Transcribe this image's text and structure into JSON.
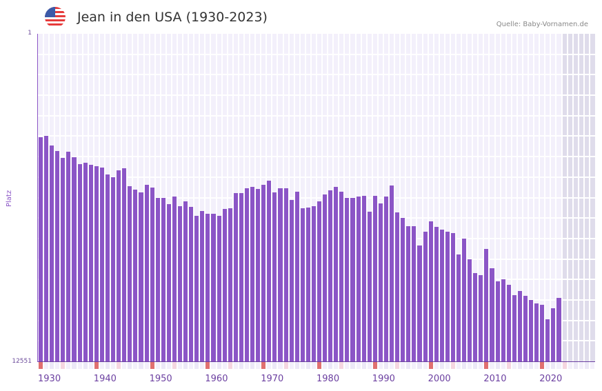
{
  "header": {
    "title": "Jean in den USA (1930-2023)",
    "source": "Quelle: Baby-Vornamen.de",
    "flag_icon": "us-flag-icon"
  },
  "axes": {
    "y_top_label": "1",
    "y_bottom_label": "12551",
    "y_title": "Platz",
    "x_ticks": [
      "1930",
      "1940",
      "1950",
      "1960",
      "1970",
      "1980",
      "1990",
      "2000",
      "2010",
      "2020"
    ]
  },
  "colors": {
    "bar": "#8b55c6",
    "decade_marker": "#e07070",
    "half_decade_marker": "#f5d6e0",
    "background": "#f3f0fb"
  },
  "chart_data": {
    "type": "bar",
    "title": "Jean in den USA (1930-2023)",
    "xlabel": "",
    "ylabel": "Platz",
    "ylim": [
      12551,
      1
    ],
    "y_inverted": true,
    "note": "Bars represent popularity rank (lower rank = taller bar); x range extends to 2029 with future years shaded",
    "x_range": [
      1930,
      2029
    ],
    "categories": [
      1930,
      1931,
      1932,
      1933,
      1934,
      1935,
      1936,
      1937,
      1938,
      1939,
      1940,
      1941,
      1942,
      1943,
      1944,
      1945,
      1946,
      1947,
      1948,
      1949,
      1950,
      1951,
      1952,
      1953,
      1954,
      1955,
      1956,
      1957,
      1958,
      1959,
      1960,
      1961,
      1962,
      1963,
      1964,
      1965,
      1966,
      1967,
      1968,
      1969,
      1970,
      1971,
      1972,
      1973,
      1974,
      1975,
      1976,
      1977,
      1978,
      1979,
      1980,
      1981,
      1982,
      1983,
      1984,
      1985,
      1986,
      1987,
      1988,
      1989,
      1990,
      1991,
      1992,
      1993,
      1994,
      1995,
      1996,
      1997,
      1998,
      1999,
      2000,
      2001,
      2002,
      2003,
      2004,
      2005,
      2006,
      2007,
      2008,
      2009,
      2010,
      2011,
      2012,
      2013,
      2014,
      2015,
      2016,
      2017,
      2018,
      2019,
      2020,
      2021,
      2022,
      2023
    ],
    "values": [
      3965,
      3912,
      4282,
      4493,
      4757,
      4520,
      4731,
      4995,
      4942,
      5021,
      5074,
      5127,
      5391,
      5497,
      5233,
      5154,
      5840,
      5972,
      6078,
      5787,
      5893,
      6289,
      6289,
      6527,
      6236,
      6606,
      6421,
      6632,
      6976,
      6791,
      6896,
      6896,
      6976,
      6711,
      6685,
      6104,
      6104,
      5919,
      5866,
      5946,
      5787,
      5629,
      6078,
      5919,
      5919,
      6368,
      6051,
      6685,
      6659,
      6606,
      6421,
      6157,
      5999,
      5866,
      6051,
      6289,
      6289,
      6236,
      6210,
      6817,
      6210,
      6500,
      6236,
      5814,
      6844,
      7055,
      7372,
      7372,
      8112,
      7583,
      7187,
      7398,
      7504,
      7583,
      7636,
      8455,
      7847,
      8640,
      9168,
      9248,
      8244,
      8983,
      9485,
      9406,
      9617,
      10013,
      9855,
      10040,
      10198,
      10330,
      10383,
      10938,
      10515,
      10119
    ]
  }
}
